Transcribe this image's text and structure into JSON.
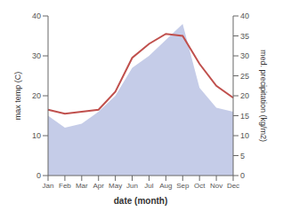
{
  "chart_data": {
    "type": "line",
    "xlabel": "date (month)",
    "ylabel": "max temp (C)",
    "y2label": "med. precipitation (kg/m2)",
    "categories": [
      "Jan",
      "Feb",
      "Mar",
      "Apr",
      "May",
      "Jun",
      "Jul",
      "Aug",
      "Sep",
      "Oct",
      "Nov",
      "Dec"
    ],
    "series": [
      {
        "type": "area",
        "axis": "y2",
        "color": "#c5cce8",
        "values": [
          15.0,
          12.0,
          13.0,
          16.0,
          20.0,
          27.0,
          30.0,
          34.0,
          38.0,
          22.0,
          17.0,
          16.0
        ]
      },
      {
        "type": "line",
        "color": "#c0504d",
        "values": [
          16.5,
          15.5,
          16.0,
          16.5,
          21.0,
          29.5,
          33.0,
          35.5,
          35.0,
          28.0,
          22.5,
          19.5
        ]
      }
    ],
    "ylim": [
      0,
      40
    ],
    "yticks": [
      0,
      10,
      20,
      30,
      40
    ],
    "y2lim": [
      0,
      40
    ],
    "y2ticks": [
      0,
      5,
      10,
      15,
      20,
      25,
      30,
      35,
      40
    ],
    "grid": false
  }
}
